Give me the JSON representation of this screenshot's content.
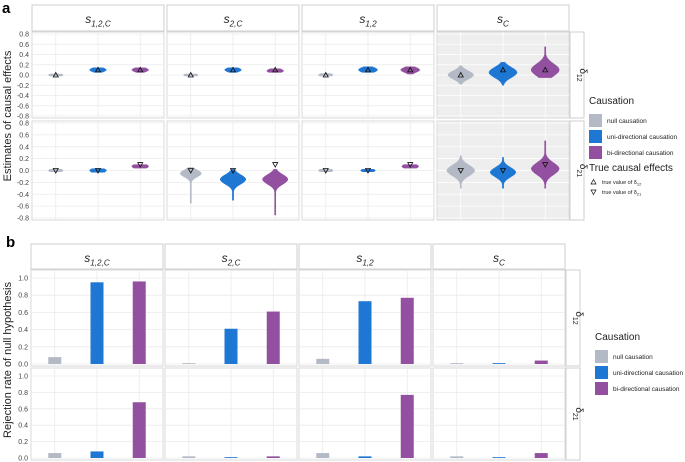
{
  "panels": {
    "a": {
      "label": "a",
      "ylabel": "Estimates of causal effects"
    },
    "b": {
      "label": "b",
      "ylabel": "Rejection rate of null hypothesis"
    }
  },
  "columns": [
    {
      "base": "s",
      "sub": "1,2,C"
    },
    {
      "base": "s",
      "sub": "2,C"
    },
    {
      "base": "s",
      "sub": "1,2"
    },
    {
      "base": "s",
      "sub": "C"
    }
  ],
  "rows": [
    {
      "base": "δ",
      "sub": "12"
    },
    {
      "base": "δ",
      "sub": "21"
    }
  ],
  "colors": {
    "null": "#b3bac6",
    "uni": "#1f77d4",
    "bi": "#9450a0"
  },
  "legend": {
    "title": "Causation",
    "items": [
      "null causation",
      "uni-directional causation",
      "bi-directional causation"
    ],
    "true_title": "True causal effects",
    "true_items": [
      {
        "text": "true value of",
        "base": "δ",
        "sub": "12"
      },
      {
        "text": "true value of",
        "base": "δ",
        "sub": "21"
      }
    ]
  },
  "chart_data": [
    {
      "type": "violin",
      "panel": "a",
      "ylabel": "Estimates of causal effects",
      "ylim": [
        -0.8,
        0.8
      ],
      "yticks": [
        "-0.8",
        "-0.6",
        "-0.4",
        "-0.2",
        "0.0",
        "0.2",
        "0.4",
        "0.6",
        "0.8"
      ],
      "categories": [
        "null causation",
        "uni-directional causation",
        "bi-directional causation"
      ],
      "facets": [
        {
          "col": 0,
          "row": 0,
          "center": [
            0.0,
            0.1,
            0.1
          ],
          "spread": [
            0.03,
            0.04,
            0.04
          ],
          "min": [
            -0.02,
            0.05,
            0.05
          ],
          "max": [
            0.02,
            0.14,
            0.14
          ],
          "true": [
            0.0,
            0.1,
            0.1
          ]
        },
        {
          "col": 1,
          "row": 0,
          "center": [
            0.0,
            0.1,
            0.08
          ],
          "spread": [
            0.03,
            0.04,
            0.04
          ],
          "min": [
            -0.02,
            0.05,
            0.05
          ],
          "max": [
            0.02,
            0.14,
            0.12
          ],
          "true": [
            0.0,
            0.1,
            0.1
          ]
        },
        {
          "col": 2,
          "row": 0,
          "center": [
            0.0,
            0.1,
            0.1
          ],
          "spread": [
            0.03,
            0.05,
            0.05
          ],
          "min": [
            -0.02,
            0.05,
            0.02
          ],
          "max": [
            0.03,
            0.16,
            0.16
          ],
          "true": [
            0.0,
            0.1,
            0.1
          ]
        },
        {
          "col": 3,
          "row": 0,
          "center": [
            0.0,
            0.05,
            0.1
          ],
          "spread": [
            0.08,
            0.1,
            0.12
          ],
          "min": [
            -0.18,
            -0.2,
            -0.05
          ],
          "max": [
            0.18,
            0.25,
            0.55
          ],
          "true": [
            0.0,
            0.1,
            0.1
          ]
        },
        {
          "col": 0,
          "row": 1,
          "center": [
            0.0,
            0.0,
            0.07
          ],
          "spread": [
            0.03,
            0.04,
            0.04
          ],
          "min": [
            -0.02,
            -0.03,
            0.04
          ],
          "max": [
            0.02,
            0.03,
            0.1
          ],
          "true": [
            0.0,
            0.0,
            0.1
          ]
        },
        {
          "col": 1,
          "row": 1,
          "center": [
            -0.05,
            -0.15,
            -0.15
          ],
          "spread": [
            0.06,
            0.08,
            0.08
          ],
          "min": [
            -0.55,
            -0.5,
            -0.75
          ],
          "max": [
            0.05,
            0.02,
            0.02
          ],
          "true": [
            0.0,
            0.0,
            0.1
          ]
        },
        {
          "col": 2,
          "row": 1,
          "center": [
            0.0,
            0.0,
            0.07
          ],
          "spread": [
            0.03,
            0.03,
            0.04
          ],
          "min": [
            -0.02,
            -0.02,
            0.04
          ],
          "max": [
            0.02,
            0.02,
            0.1
          ],
          "true": [
            0.0,
            0.0,
            0.1
          ]
        },
        {
          "col": 3,
          "row": 1,
          "center": [
            0.0,
            -0.03,
            0.03
          ],
          "spread": [
            0.09,
            0.08,
            0.1
          ],
          "min": [
            -0.3,
            -0.3,
            -0.3
          ],
          "max": [
            0.25,
            0.22,
            0.5
          ],
          "true": [
            0.0,
            0.0,
            0.1
          ]
        }
      ]
    },
    {
      "type": "bar",
      "panel": "b",
      "ylabel": "Rejection rate of null hypothesis",
      "ylim": [
        0,
        1
      ],
      "yticks": [
        "0.0",
        "0.2",
        "0.4",
        "0.6",
        "0.8",
        "1.0"
      ],
      "categories": [
        "null causation",
        "uni-directional causation",
        "bi-directional causation"
      ],
      "facets": [
        {
          "col": 0,
          "row": 0,
          "values": [
            0.08,
            0.95,
            0.96
          ]
        },
        {
          "col": 1,
          "row": 0,
          "values": [
            0.01,
            0.41,
            0.61
          ]
        },
        {
          "col": 2,
          "row": 0,
          "values": [
            0.06,
            0.73,
            0.77
          ]
        },
        {
          "col": 3,
          "row": 0,
          "values": [
            0.01,
            0.01,
            0.04
          ]
        },
        {
          "col": 0,
          "row": 1,
          "values": [
            0.06,
            0.08,
            0.68
          ]
        },
        {
          "col": 1,
          "row": 1,
          "values": [
            0.02,
            0.01,
            0.02
          ]
        },
        {
          "col": 2,
          "row": 1,
          "values": [
            0.06,
            0.02,
            0.77
          ]
        },
        {
          "col": 3,
          "row": 1,
          "values": [
            0.02,
            0.01,
            0.06
          ]
        }
      ]
    }
  ]
}
